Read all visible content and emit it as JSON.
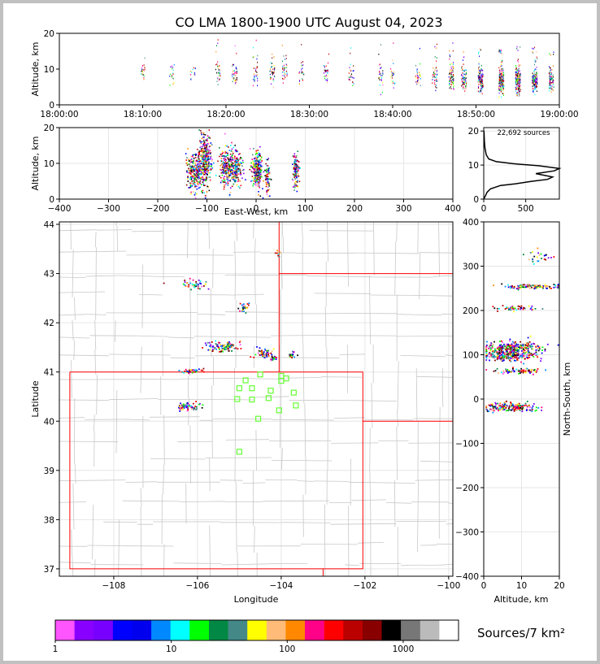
{
  "figure": {
    "title": "CO LMA 1800-1900 UTC August 04, 2023"
  },
  "colors": {
    "lma_red_border": "#ff0000",
    "county_line": "#c8c8c8",
    "station_marker": "#66ff33",
    "histogram_line": "#000000"
  },
  "chart_data": [
    {
      "id": "time-altitude",
      "type": "scatter",
      "ylabel": "Altitude, km",
      "xlim": [
        "18:00:00",
        "19:00:00"
      ],
      "ylim": [
        0,
        20
      ],
      "x_ticks": [
        "18:00:00",
        "18:10:00",
        "18:20:00",
        "18:30:00",
        "18:40:00",
        "18:50:00",
        "19:00:00"
      ],
      "y_ticks": [
        0,
        10,
        20
      ],
      "clusters": [
        {
          "t": 10.0,
          "alt": 9,
          "spread": 3,
          "n": 25
        },
        {
          "t": 13.5,
          "alt": 9,
          "spread": 3,
          "n": 18
        },
        {
          "t": 16.0,
          "alt": 9,
          "spread": 3,
          "n": 12
        },
        {
          "t": 19.0,
          "alt": 9,
          "spread": 3,
          "n": 30
        },
        {
          "t": 21.0,
          "alt": 9,
          "spread": 3,
          "n": 40
        },
        {
          "t": 23.5,
          "alt": 9,
          "spread": 3,
          "n": 30
        },
        {
          "t": 25.5,
          "alt": 9,
          "spread": 3,
          "n": 40
        },
        {
          "t": 27.0,
          "alt": 9,
          "spread": 3,
          "n": 35
        },
        {
          "t": 29.0,
          "alt": 9,
          "spread": 3,
          "n": 25
        },
        {
          "t": 32.0,
          "alt": 9,
          "spread": 3,
          "n": 30
        },
        {
          "t": 35.0,
          "alt": 8,
          "spread": 3,
          "n": 25
        },
        {
          "t": 38.5,
          "alt": 8,
          "spread": 3,
          "n": 30
        },
        {
          "t": 40.0,
          "alt": 8,
          "spread": 3,
          "n": 20
        },
        {
          "t": 43.0,
          "alt": 8,
          "spread": 3,
          "n": 30
        },
        {
          "t": 45.0,
          "alt": 8,
          "spread": 3,
          "n": 45
        },
        {
          "t": 47.0,
          "alt": 8,
          "spread": 3,
          "n": 80
        },
        {
          "t": 48.5,
          "alt": 7,
          "spread": 3,
          "n": 80
        },
        {
          "t": 50.5,
          "alt": 7,
          "spread": 3,
          "n": 120
        },
        {
          "t": 53.0,
          "alt": 7,
          "spread": 3,
          "n": 200
        },
        {
          "t": 55.0,
          "alt": 7,
          "spread": 3,
          "n": 200
        },
        {
          "t": 57.0,
          "alt": 7,
          "spread": 3,
          "n": 160
        },
        {
          "t": 59.0,
          "alt": 7,
          "spread": 3,
          "n": 80
        }
      ]
    },
    {
      "id": "ew-altitude",
      "type": "scatter",
      "xlabel": "East-West, km",
      "ylabel": "Altitude, km",
      "xlim": [
        -400,
        400
      ],
      "ylim": [
        0,
        20
      ],
      "x_ticks": [
        -400,
        -300,
        -200,
        -100,
        0,
        100,
        200,
        300,
        400
      ],
      "y_ticks": [
        0,
        10,
        20
      ],
      "clusters": [
        {
          "x": -125,
          "alt": 8,
          "sx": 10,
          "sy": 2.5,
          "n": 260
        },
        {
          "x": -105,
          "alt": 11,
          "sx": 6,
          "sy": 3.5,
          "n": 320
        },
        {
          "x": -60,
          "alt": 9,
          "sx": 8,
          "sy": 2.5,
          "n": 260
        },
        {
          "x": -40,
          "alt": 9,
          "sx": 6,
          "sy": 2.5,
          "n": 140
        },
        {
          "x": 0,
          "alt": 8,
          "sx": 5,
          "sy": 2.5,
          "n": 260
        },
        {
          "x": 22,
          "alt": 6,
          "sx": 3,
          "sy": 2,
          "n": 80
        },
        {
          "x": 80,
          "alt": 8,
          "sx": 3,
          "sy": 2.5,
          "n": 140
        }
      ]
    },
    {
      "id": "altitude-histogram",
      "type": "line",
      "annotation": "22,692 sources",
      "xlim": [
        0,
        900
      ],
      "ylim": [
        0,
        21
      ],
      "x_ticks": [
        0,
        500
      ],
      "y_ticks": [
        0,
        10,
        20
      ],
      "points": [
        [
          0,
          0
        ],
        [
          20,
          1
        ],
        [
          40,
          2
        ],
        [
          80,
          3
        ],
        [
          200,
          4
        ],
        [
          380,
          4.5
        ],
        [
          560,
          5.2
        ],
        [
          760,
          5.8
        ],
        [
          820,
          6.5
        ],
        [
          620,
          7.5
        ],
        [
          840,
          8.3
        ],
        [
          900,
          9
        ],
        [
          650,
          9.8
        ],
        [
          350,
          10.4
        ],
        [
          150,
          11
        ],
        [
          60,
          11.8
        ],
        [
          30,
          13
        ],
        [
          15,
          15
        ],
        [
          8,
          17
        ],
        [
          3,
          20
        ]
      ]
    },
    {
      "id": "plan-view",
      "type": "scatter",
      "xlabel": "Longitude",
      "ylabel": "Latitude",
      "xlim": [
        -109.3,
        -99.9
      ],
      "ylim": [
        36.85,
        44.05
      ],
      "x_ticks": [
        -108,
        -106,
        -104,
        -102,
        -100
      ],
      "y_ticks": [
        37,
        38,
        39,
        40,
        41,
        42,
        43,
        44
      ],
      "state_borders": [
        [
          [
            -109.05,
            41.0
          ],
          [
            -102.05,
            41.0
          ],
          [
            -102.05,
            37.0
          ],
          [
            -109.05,
            37.0
          ],
          [
            -109.05,
            41.0
          ]
        ],
        [
          [
            -104.05,
            44.05
          ],
          [
            -104.05,
            41.0
          ]
        ],
        [
          [
            -104.05,
            43.0
          ],
          [
            -99.9,
            43.0
          ]
        ],
        [
          [
            -102.05,
            40.0
          ],
          [
            -99.9,
            40.0
          ]
        ],
        [
          [
            -103.0,
            37.0
          ],
          [
            -103.0,
            36.85
          ]
        ]
      ],
      "clusters": [
        {
          "lon": -106.1,
          "lat": 42.78,
          "slon": 0.15,
          "slat": 0.05,
          "n": 40
        },
        {
          "lon": -104.9,
          "lat": 42.33,
          "slon": 0.07,
          "slat": 0.05,
          "n": 30
        },
        {
          "lon": -105.4,
          "lat": 41.53,
          "slon": 0.2,
          "slat": 0.05,
          "n": 100
        },
        {
          "lon": -104.45,
          "lat": 41.38,
          "slon": 0.1,
          "slat": 0.05,
          "n": 60
        },
        {
          "lon": -104.2,
          "lat": 41.28,
          "slon": 0.03,
          "slat": 0.03,
          "n": 15
        },
        {
          "lon": -103.75,
          "lat": 41.35,
          "slon": 0.04,
          "slat": 0.04,
          "n": 20
        },
        {
          "lon": -106.2,
          "lat": 41.03,
          "slon": 0.15,
          "slat": 0.03,
          "n": 40
        },
        {
          "lon": -106.2,
          "lat": 40.3,
          "slon": 0.15,
          "slat": 0.04,
          "n": 60
        },
        {
          "lon": -104.1,
          "lat": 43.45,
          "slon": 0.03,
          "slat": 0.05,
          "n": 10
        }
      ],
      "stations": [
        [
          -104.5,
          40.95
        ],
        [
          -104.0,
          40.92
        ],
        [
          -104.0,
          40.82
        ],
        [
          -103.88,
          40.87
        ],
        [
          -104.85,
          40.83
        ],
        [
          -105.0,
          40.67
        ],
        [
          -104.7,
          40.67
        ],
        [
          -104.25,
          40.62
        ],
        [
          -103.7,
          40.58
        ],
        [
          -105.05,
          40.45
        ],
        [
          -104.7,
          40.44
        ],
        [
          -104.3,
          40.47
        ],
        [
          -103.65,
          40.32
        ],
        [
          -104.05,
          40.22
        ],
        [
          -104.55,
          40.05
        ],
        [
          -105.0,
          39.38
        ]
      ]
    },
    {
      "id": "altitude-ns",
      "type": "scatter",
      "xlabel": "Altitude, km",
      "ylabel": "North-South, km",
      "xlim": [
        0,
        20
      ],
      "ylim": [
        -400,
        400
      ],
      "x_ticks": [
        0,
        10,
        20
      ],
      "y_ticks": [
        -400,
        -300,
        -200,
        -100,
        0,
        100,
        200,
        300,
        400
      ],
      "clusters": [
        {
          "alt": 15,
          "y": 322,
          "sa": 2,
          "sy": 8,
          "n": 25
        },
        {
          "alt": 13,
          "y": 255,
          "sa": 4,
          "sy": 3,
          "n": 110
        },
        {
          "alt": 8,
          "y": 207,
          "sa": 3,
          "sy": 3,
          "n": 50
        },
        {
          "alt": 8,
          "y": 117,
          "sa": 3.5,
          "sy": 8,
          "n": 260
        },
        {
          "alt": 6.5,
          "y": 100,
          "sa": 3.5,
          "sy": 6,
          "n": 220
        },
        {
          "alt": 9,
          "y": 65,
          "sa": 3,
          "sy": 3,
          "n": 80
        },
        {
          "alt": 7,
          "y": -17,
          "sa": 3.5,
          "sy": 5,
          "n": 200
        }
      ]
    }
  ],
  "colorbar": {
    "label": "Sources/7 km²",
    "tick_labels": [
      "1",
      "10",
      "100",
      "1000"
    ],
    "tick_values": [
      1,
      10,
      100,
      1000
    ],
    "range": [
      1,
      3000
    ],
    "colors": [
      "#ff55ff",
      "#8800ff",
      "#7700ff",
      "#0000ff",
      "#0000ee",
      "#0088ff",
      "#00ffff",
      "#00ff00",
      "#008844",
      "#448888",
      "#ffff00",
      "#ffbb77",
      "#ff8800",
      "#ff0088",
      "#ff0000",
      "#bb0000",
      "#880000",
      "#000000",
      "#777777",
      "#bbbbbb",
      "#ffffff"
    ]
  }
}
